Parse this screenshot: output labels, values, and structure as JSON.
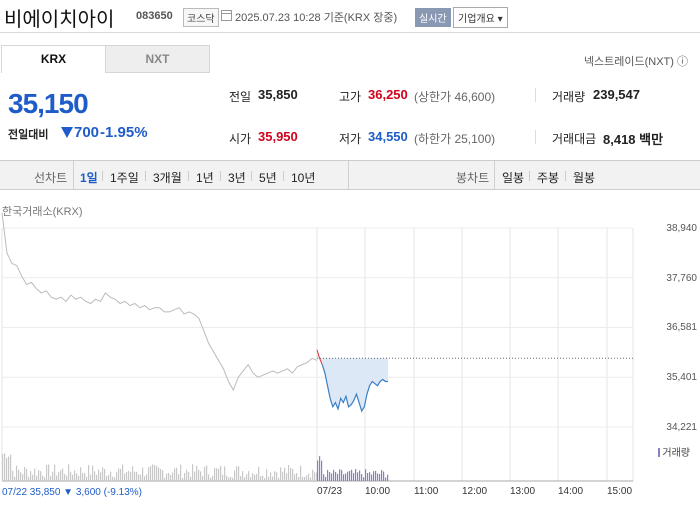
{
  "header": {
    "stock_name": "비에이치아이",
    "stock_code": "083650",
    "market_badge": "코스닥",
    "datetime": "2025.07.23 10:28 기준(KRX 장중)",
    "realtime_label": "실시간",
    "corp_info_label": "기업개요 ▾"
  },
  "tabs": {
    "krx": "KRX",
    "nxt": "NXT",
    "nextrade_link": "넥스트레이드(NXT) ⓘ"
  },
  "price": {
    "current": "35,150",
    "change_label": "전일대비",
    "change": "700",
    "change_pct": "-1.95%",
    "direction": "down",
    "color": "#1f5cc9"
  },
  "stats": {
    "prev_label": "전일",
    "prev": "35,850",
    "open_label": "시가",
    "open": "35,950",
    "high_label": "고가",
    "high": "36,250",
    "upper_limit": "(상한가 46,600)",
    "low_label": "저가",
    "low": "34,550",
    "lower_limit": "(하한가 25,100)",
    "volume_label": "거래량",
    "volume": "239,547",
    "amount_label": "거래대금",
    "amount": "8,418 백만"
  },
  "period_bar": {
    "line_label": "선차트",
    "line_items": [
      "1일",
      "1주일",
      "3개월",
      "1년",
      "3년",
      "5년",
      "10년"
    ],
    "selected": "1일",
    "candle_label": "봉차트",
    "candle_items": [
      "일봉",
      "주봉",
      "월봉"
    ]
  },
  "chart_source": "한국거래소(KRX)",
  "volume_legend": "거래량",
  "bottom_info": "07/22  35,850 ▼ 3,600 (-9.13%)",
  "chart_data": {
    "type": "line",
    "y_ticks": [
      "38,940",
      "37,760",
      "36,581",
      "35,401",
      "34,221"
    ],
    "x_ticks": [
      "07/22",
      "07/23",
      "10:00",
      "11:00",
      "12:00",
      "13:00",
      "14:00",
      "15:00"
    ],
    "ylim": [
      34221,
      38940
    ],
    "reference_price": 35850,
    "series": [
      {
        "period": "07/22",
        "color": "#bbbbbb",
        "values": [
          39300,
          38350,
          38100,
          38050,
          37800,
          37600,
          37650,
          37500,
          37400,
          37450,
          37300,
          37250,
          37300,
          37200,
          37350,
          37250,
          37300,
          37200,
          37150,
          37250,
          37200,
          37400,
          37300,
          37250,
          37150,
          37200,
          37100,
          37150,
          37050,
          37100,
          37000,
          37050,
          37050,
          36950,
          36950,
          37000,
          37050,
          36900,
          36950,
          36900,
          36800,
          36500,
          36200,
          36000,
          35800,
          35600,
          35300,
          35100,
          35400,
          35550,
          35700,
          35500,
          35400,
          35450,
          35500,
          35550,
          35500,
          35550,
          35600,
          35500,
          35650,
          35700,
          35750,
          35850,
          35800
        ]
      },
      {
        "period": "07/23",
        "color": "#3b7fc4",
        "values": [
          36050,
          35850,
          35700,
          35500,
          35200,
          34900,
          34700,
          34800,
          34650,
          34900,
          34800,
          34950,
          34700,
          34750,
          34850,
          35000,
          34800,
          34600,
          34700,
          35000,
          35200,
          35300,
          35250,
          35200,
          35300,
          35350,
          35300,
          35300
        ]
      }
    ]
  }
}
